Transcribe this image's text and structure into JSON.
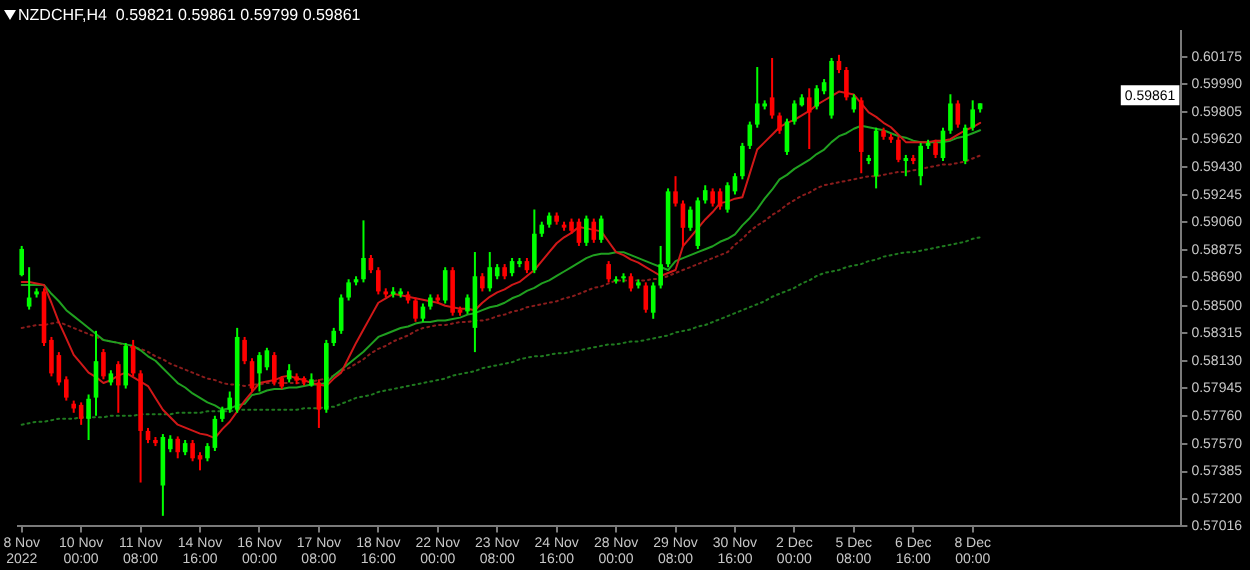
{
  "chart_data": {
    "type": "candlestick",
    "title": "NZDCHF,H4  0.59821 0.59861 0.59799 0.59861",
    "categories": [
      "8 Nov 2022",
      null,
      null,
      null,
      null,
      null,
      null,
      null,
      "10 Nov 00:00",
      null,
      null,
      null,
      null,
      null,
      null,
      null,
      "11 Nov 08:00",
      null,
      null,
      null,
      null,
      null,
      null,
      null,
      "14 Nov 16:00",
      null,
      null,
      null,
      null,
      null,
      null,
      null,
      "16 Nov 00:00",
      null,
      null,
      null,
      null,
      null,
      null,
      null,
      "17 Nov 08:00",
      null,
      null,
      null,
      null,
      null,
      null,
      null,
      "18 Nov 16:00",
      null,
      null,
      null,
      null,
      null,
      null,
      null,
      "22 Nov 00:00",
      null,
      null,
      null,
      null,
      null,
      null,
      null,
      "23 Nov 08:00",
      null,
      null,
      null,
      null,
      null,
      null,
      null,
      "24 Nov 16:00",
      null,
      null,
      null,
      null,
      null,
      null,
      null,
      "28 Nov 00:00",
      null,
      null,
      null,
      null,
      null,
      null,
      null,
      "29 Nov 08:00",
      null,
      null,
      null,
      null,
      null,
      null,
      null,
      "30 Nov 16:00",
      null,
      null,
      null,
      null,
      null,
      null,
      null,
      "2 Dec 00:00",
      null,
      null,
      null,
      null,
      null,
      null,
      null,
      "5 Dec 08:00",
      null,
      null,
      null,
      null,
      null,
      null,
      null,
      "6 Dec 16:00",
      null,
      null,
      null,
      null,
      null,
      null,
      null,
      "8 Dec 00:00",
      null
    ],
    "ohlc": [
      [
        0.58706,
        0.58902,
        0.58698,
        0.58882
      ],
      [
        0.58494,
        0.58759,
        0.58474,
        0.58555
      ],
      [
        0.58576,
        0.58617,
        0.58555,
        0.58596
      ],
      [
        0.58596,
        0.58617,
        0.58229,
        0.58249
      ],
      [
        0.5827,
        0.5829,
        0.58025,
        0.58045
      ],
      [
        0.58168,
        0.58188,
        0.57964,
        0.57984
      ],
      [
        0.58005,
        0.58025,
        0.57862,
        0.57882
      ],
      [
        0.57841,
        0.57862,
        0.5778,
        0.57809
      ],
      [
        0.57833,
        0.5785,
        0.57699,
        0.57739
      ],
      [
        0.57739,
        0.57903,
        0.57597,
        0.57874
      ],
      [
        0.57882,
        0.58331,
        0.5776,
        0.58127
      ],
      [
        0.58188,
        0.58209,
        0.58005,
        0.58025
      ],
      [
        0.57984,
        0.58066,
        0.57964,
        0.58045
      ],
      [
        0.58107,
        0.58127,
        0.5778,
        0.57964
      ],
      [
        0.57964,
        0.58249,
        0.57943,
        0.58229
      ],
      [
        0.58229,
        0.5827,
        0.58025,
        0.58045
      ],
      [
        0.58045,
        0.58066,
        0.57311,
        0.57658
      ],
      [
        0.57658,
        0.57678,
        0.57576,
        0.57597
      ],
      [
        0.57597,
        0.57617,
        0.57556,
        0.57576
      ],
      [
        0.57291,
        0.57637,
        0.57087,
        0.57617
      ],
      [
        0.57535,
        0.57629,
        0.57515,
        0.57605
      ],
      [
        0.57605,
        0.57621,
        0.57474,
        0.57515
      ],
      [
        0.57515,
        0.57597,
        0.57495,
        0.57576
      ],
      [
        0.57576,
        0.57597,
        0.57454,
        0.57474
      ],
      [
        0.57495,
        0.57515,
        0.57393,
        0.57466
      ],
      [
        0.57474,
        0.57576,
        0.57454,
        0.57556
      ],
      [
        0.57544,
        0.5776,
        0.57523,
        0.57739
      ],
      [
        0.57739,
        0.57821,
        0.57719,
        0.57801
      ],
      [
        0.57801,
        0.57923,
        0.5778,
        0.57882
      ],
      [
        0.57801,
        0.58351,
        0.5778,
        0.5829
      ],
      [
        0.5827,
        0.5829,
        0.58107,
        0.58127
      ],
      [
        0.58127,
        0.58147,
        0.57923,
        0.57943
      ],
      [
        0.58045,
        0.58188,
        0.57923,
        0.58168
      ],
      [
        0.58086,
        0.58217,
        0.58066,
        0.582
      ],
      [
        0.58168,
        0.58188,
        0.57964,
        0.57984
      ],
      [
        0.58013,
        0.58025,
        0.57939,
        0.57956
      ],
      [
        0.58005,
        0.58107,
        0.57984,
        0.58066
      ],
      [
        0.58025,
        0.58045,
        0.57972,
        0.57996
      ],
      [
        0.58013,
        0.58025,
        0.57964,
        0.57984
      ],
      [
        0.57964,
        0.58045,
        0.57956,
        0.58005
      ],
      [
        0.57984,
        0.58005,
        0.57678,
        0.57801
      ],
      [
        0.57801,
        0.5827,
        0.5778,
        0.58249
      ],
      [
        0.58249,
        0.58351,
        0.58229,
        0.58331
      ],
      [
        0.58331,
        0.58576,
        0.58311,
        0.58555
      ],
      [
        0.58555,
        0.58678,
        0.58535,
        0.58657
      ],
      [
        0.58657,
        0.58698,
        0.58637,
        0.58678
      ],
      [
        0.58678,
        0.59074,
        0.58657,
        0.58821
      ],
      [
        0.58821,
        0.58841,
        0.58719,
        0.58739
      ],
      [
        0.58739,
        0.58759,
        0.58576,
        0.58596
      ],
      [
        0.58596,
        0.58617,
        0.58555,
        0.58576
      ],
      [
        0.58576,
        0.58625,
        0.58555,
        0.58596
      ],
      [
        0.58576,
        0.58617,
        0.58555,
        0.58596
      ],
      [
        0.58576,
        0.58596,
        0.58515,
        0.58535
      ],
      [
        0.58535,
        0.58555,
        0.58392,
        0.58413
      ],
      [
        0.58413,
        0.58515,
        0.58392,
        0.58494
      ],
      [
        0.58494,
        0.58576,
        0.58474,
        0.58555
      ],
      [
        0.58555,
        0.58576,
        0.58515,
        0.58535
      ],
      [
        0.58535,
        0.58759,
        0.58515,
        0.58739
      ],
      [
        0.58739,
        0.58759,
        0.58433,
        0.58453
      ],
      [
        0.58474,
        0.58494,
        0.58433,
        0.58453
      ],
      [
        0.58462,
        0.58576,
        0.58445,
        0.58555
      ],
      [
        0.58351,
        0.58861,
        0.58188,
        0.58698
      ],
      [
        0.58698,
        0.58719,
        0.58596,
        0.58617
      ],
      [
        0.58617,
        0.58861,
        0.58596,
        0.58759
      ],
      [
        0.58698,
        0.5878,
        0.58678,
        0.58759
      ],
      [
        0.58759,
        0.5878,
        0.58678,
        0.58698
      ],
      [
        0.58719,
        0.58821,
        0.58698,
        0.588
      ],
      [
        0.5878,
        0.58821,
        0.58759,
        0.588
      ],
      [
        0.588,
        0.58821,
        0.58719,
        0.58739
      ],
      [
        0.58739,
        0.59147,
        0.58719,
        0.58984
      ],
      [
        0.58984,
        0.59065,
        0.58963,
        0.59045
      ],
      [
        0.59045,
        0.59127,
        0.59025,
        0.59106
      ],
      [
        0.59106,
        0.59127,
        0.59045,
        0.59065
      ],
      [
        0.59045,
        0.59065,
        0.59004,
        0.59025
      ],
      [
        0.59065,
        0.59086,
        0.58984,
        0.59004
      ],
      [
        0.59065,
        0.59086,
        0.58902,
        0.58923
      ],
      [
        0.58923,
        0.59106,
        0.58902,
        0.59086
      ],
      [
        0.59065,
        0.59086,
        0.58923,
        0.58943
      ],
      [
        0.58943,
        0.59106,
        0.58923,
        0.59086
      ],
      [
        0.5878,
        0.588,
        0.58657,
        0.58678
      ],
      [
        0.58666,
        0.58698,
        0.58649,
        0.58678
      ],
      [
        0.58689,
        0.58718,
        0.58657,
        0.58698
      ],
      [
        0.58698,
        0.58718,
        0.58596,
        0.58616
      ],
      [
        0.58636,
        0.58677,
        0.58616,
        0.58657
      ],
      [
        0.58636,
        0.58657,
        0.58453,
        0.58473
      ],
      [
        0.58453,
        0.58657,
        0.58412,
        0.58636
      ],
      [
        0.58636,
        0.58902,
        0.58616,
        0.58779
      ],
      [
        0.58779,
        0.59289,
        0.58759,
        0.59269
      ],
      [
        0.59269,
        0.59371,
        0.59167,
        0.59187
      ],
      [
        0.59187,
        0.59208,
        0.58902,
        0.59024
      ],
      [
        0.59024,
        0.59167,
        0.59004,
        0.59146
      ],
      [
        0.58902,
        0.59228,
        0.58881,
        0.59208
      ],
      [
        0.59208,
        0.5931,
        0.59187,
        0.59277
      ],
      [
        0.59269,
        0.59289,
        0.59167,
        0.59187
      ],
      [
        0.59269,
        0.59289,
        0.59146,
        0.59167
      ],
      [
        0.59146,
        0.5933,
        0.59126,
        0.5931
      ],
      [
        0.59269,
        0.59391,
        0.59248,
        0.59371
      ],
      [
        0.59371,
        0.59595,
        0.5935,
        0.59575
      ],
      [
        0.59575,
        0.59738,
        0.59554,
        0.59718
      ],
      [
        0.59718,
        0.60105,
        0.59697,
        0.5986
      ],
      [
        0.5984,
        0.59881,
        0.5982,
        0.5986
      ],
      [
        0.59901,
        0.60166,
        0.59758,
        0.59779
      ],
      [
        0.59779,
        0.59799,
        0.59656,
        0.59677
      ],
      [
        0.59534,
        0.59758,
        0.59514,
        0.59738
      ],
      [
        0.59738,
        0.59881,
        0.59718,
        0.5986
      ],
      [
        0.59848,
        0.59922,
        0.5984,
        0.59901
      ],
      [
        0.59901,
        0.59962,
        0.59554,
        0.59799
      ],
      [
        0.5984,
        0.59983,
        0.5982,
        0.59962
      ],
      [
        0.59942,
        0.60024,
        0.59922,
        0.60003
      ],
      [
        0.59779,
        0.60166,
        0.59758,
        0.60146
      ],
      [
        0.60146,
        0.60187,
        0.60064,
        0.60085
      ],
      [
        0.60085,
        0.60105,
        0.59881,
        0.59901
      ],
      [
        0.5982,
        0.59922,
        0.59799,
        0.59901
      ],
      [
        0.59881,
        0.59901,
        0.59391,
        0.59534
      ],
      [
        0.59473,
        0.59514,
        0.59452,
        0.59493
      ],
      [
        0.59371,
        0.59697,
        0.59289,
        0.59677
      ],
      [
        0.59677,
        0.59697,
        0.59616,
        0.59636
      ],
      [
        0.59636,
        0.59656,
        0.59595,
        0.59616
      ],
      [
        0.59616,
        0.59636,
        0.59465,
        0.59481
      ],
      [
        0.59473,
        0.59514,
        0.59371,
        0.59493
      ],
      [
        0.59493,
        0.59514,
        0.59452,
        0.59473
      ],
      [
        0.59371,
        0.59595,
        0.5931,
        0.59575
      ],
      [
        0.59575,
        0.59616,
        0.59554,
        0.59595
      ],
      [
        0.59595,
        0.59616,
        0.59493,
        0.59514
      ],
      [
        0.59493,
        0.59697,
        0.59473,
        0.59677
      ],
      [
        0.59677,
        0.59922,
        0.59656,
        0.5986
      ],
      [
        0.5986,
        0.59881,
        0.59697,
        0.59718
      ],
      [
        0.59473,
        0.59718,
        0.59452,
        0.59697
      ],
      [
        0.59697,
        0.59881,
        0.59677,
        0.5982
      ],
      [
        0.59821,
        0.59861,
        0.59799,
        0.59861
      ]
    ],
    "colors": [
      "#00ff00",
      "#00ff00",
      "#00ff00",
      "#ff0000",
      "#ff0000",
      "#ff0000",
      "#ff0000",
      "#ff0000",
      "#ff0000",
      "#00ff00",
      "#00ff00",
      "#ff0000",
      "#00ff00",
      "#ff0000",
      "#00ff00",
      "#ff0000",
      "#ff0000",
      "#ff0000",
      "#ff0000",
      "#00ff00",
      "#00ff00",
      "#ff0000",
      "#00ff00",
      "#ff0000",
      "#ff0000",
      "#00ff00",
      "#00ff00",
      "#00ff00",
      "#00ff00",
      "#00ff00",
      "#ff0000",
      "#ff0000",
      "#00ff00",
      "#00ff00",
      "#ff0000",
      "#ff0000",
      "#00ff00",
      "#ff0000",
      "#ff0000",
      "#00ff00",
      "#ff0000",
      "#00ff00",
      "#00ff00",
      "#00ff00",
      "#00ff00",
      "#00ff00",
      "#00ff00",
      "#ff0000",
      "#ff0000",
      "#ff0000",
      "#00ff00",
      "#00ff00",
      "#ff0000",
      "#ff0000",
      "#00ff00",
      "#00ff00",
      "#ff0000",
      "#00ff00",
      "#ff0000",
      "#ff0000",
      "#00ff00",
      "#00ff00",
      "#ff0000",
      "#00ff00",
      "#00ff00",
      "#ff0000",
      "#00ff00",
      "#00ff00",
      "#ff0000",
      "#00ff00",
      "#00ff00",
      "#00ff00",
      "#ff0000",
      "#ff0000",
      "#ff0000",
      "#ff0000",
      "#00ff00",
      "#ff0000",
      "#00ff00",
      "#ff0000",
      "#00ff00",
      "#00ff00",
      "#ff0000",
      "#00ff00",
      "#ff0000",
      "#00ff00",
      "#00ff00",
      "#00ff00",
      "#ff0000",
      "#ff0000",
      "#00ff00",
      "#00ff00",
      "#00ff00",
      "#ff0000",
      "#ff0000",
      "#00ff00",
      "#00ff00",
      "#00ff00",
      "#00ff00",
      "#00ff00",
      "#00ff00",
      "#ff0000",
      "#ff0000",
      "#00ff00",
      "#00ff00",
      "#00ff00",
      "#ff0000",
      "#00ff00",
      "#00ff00",
      "#00ff00",
      "#ff0000",
      "#ff0000",
      "#00ff00",
      "#ff0000",
      "#00ff00",
      "#00ff00",
      "#ff0000",
      "#ff0000",
      "#ff0000",
      "#00ff00",
      "#ff0000",
      "#00ff00",
      "#00ff00",
      "#ff0000",
      "#00ff00",
      "#00ff00",
      "#ff0000",
      "#00ff00",
      "#00ff00",
      "#00ff00"
    ],
    "series": [
      {
        "type": "line",
        "color": "#d01818",
        "line_style": "solid",
        "values": [
          0.5866,
          0.5866,
          0.5865,
          0.5864,
          0.5852,
          0.5839,
          0.5828,
          0.5817,
          0.5811,
          0.5805,
          0.5802,
          0.5798,
          0.58,
          0.5803,
          0.5805,
          0.5802,
          0.5799,
          0.5796,
          0.5788,
          0.578,
          0.5775,
          0.577,
          0.5768,
          0.5766,
          0.5764,
          0.5763,
          0.5761,
          0.5767,
          0.5772,
          0.5779,
          0.5786,
          0.5792,
          0.5798,
          0.5799,
          0.58,
          0.5802,
          0.5803,
          0.5801,
          0.58,
          0.5798,
          0.5797,
          0.5796,
          0.5801,
          0.5805,
          0.5815,
          0.5825,
          0.5834,
          0.5843,
          0.5852,
          0.5855,
          0.5858,
          0.5857,
          0.5856,
          0.5855,
          0.5854,
          0.5853,
          0.5852,
          0.585,
          0.5849,
          0.5848,
          0.5848,
          0.5847,
          0.5852,
          0.5856,
          0.5859,
          0.5861,
          0.5864,
          0.5866,
          0.587,
          0.5874,
          0.588,
          0.5886,
          0.5892,
          0.5896,
          0.5899,
          0.5903,
          0.5902,
          0.5901,
          0.59,
          0.5893,
          0.5886,
          0.5884,
          0.5881,
          0.5879,
          0.5876,
          0.5873,
          0.587,
          0.5872,
          0.5874,
          0.589,
          0.5896,
          0.5902,
          0.5908,
          0.5913,
          0.5919,
          0.592,
          0.5922,
          0.5923,
          0.5939,
          0.5955,
          0.596,
          0.5965,
          0.597,
          0.5973,
          0.5975,
          0.5978,
          0.5981,
          0.5985,
          0.5988,
          0.5991,
          0.5994,
          0.5993,
          0.5992,
          0.5986,
          0.598,
          0.5977,
          0.5973,
          0.597,
          0.5965,
          0.596,
          0.596,
          0.596,
          0.596,
          0.5961,
          0.5961,
          0.5962,
          0.5965,
          0.5968,
          0.597,
          0.5973
        ]
      },
      {
        "type": "line",
        "color": "#20a020",
        "line_style": "solid",
        "values": [
          0.5864,
          0.5864,
          0.5864,
          0.5864,
          0.5858,
          0.5853,
          0.5847,
          0.5843,
          0.5839,
          0.5835,
          0.5831,
          0.5827,
          0.5826,
          0.5825,
          0.5824,
          0.5823,
          0.582,
          0.5816,
          0.5813,
          0.5808,
          0.5803,
          0.5798,
          0.5795,
          0.5791,
          0.5788,
          0.5785,
          0.5783,
          0.578,
          0.5781,
          0.5783,
          0.5784,
          0.579,
          0.5791,
          0.5793,
          0.5794,
          0.5794,
          0.5795,
          0.5795,
          0.5796,
          0.5797,
          0.5797,
          0.5798,
          0.5803,
          0.5807,
          0.5811,
          0.5815,
          0.5819,
          0.5824,
          0.5829,
          0.5831,
          0.5833,
          0.5835,
          0.5836,
          0.5838,
          0.5839,
          0.5839,
          0.584,
          0.584,
          0.5841,
          0.5842,
          0.5844,
          0.5845,
          0.5847,
          0.5849,
          0.585,
          0.5852,
          0.5855,
          0.5857,
          0.586,
          0.5862,
          0.5865,
          0.5867,
          0.587,
          0.5873,
          0.5876,
          0.5879,
          0.5882,
          0.5884,
          0.5885,
          0.5885,
          0.5886,
          0.5886,
          0.5884,
          0.5882,
          0.588,
          0.5878,
          0.5876,
          0.5874,
          0.588,
          0.5882,
          0.5884,
          0.5886,
          0.5888,
          0.589,
          0.5893,
          0.5895,
          0.5898,
          0.5904,
          0.5909,
          0.5915,
          0.5922,
          0.5928,
          0.5935,
          0.5938,
          0.5942,
          0.5945,
          0.5948,
          0.5952,
          0.5955,
          0.596,
          0.5964,
          0.5966,
          0.5969,
          0.5971,
          0.597,
          0.5969,
          0.5968,
          0.5966,
          0.5964,
          0.5963,
          0.5961,
          0.596,
          0.596,
          0.596,
          0.596,
          0.5961,
          0.5963,
          0.5964,
          0.5966,
          0.5968
        ]
      },
      {
        "type": "line",
        "color": "#8b1c1c",
        "line_style": "dotted",
        "values": [
          0.5835,
          0.5836,
          0.5837,
          0.5837,
          0.5838,
          0.5839,
          0.5837,
          0.5835,
          0.5833,
          0.5831,
          0.5829,
          0.5827,
          0.5826,
          0.5825,
          0.5823,
          0.5822,
          0.5821,
          0.5819,
          0.5816,
          0.5814,
          0.5811,
          0.5809,
          0.5807,
          0.5805,
          0.5803,
          0.5801,
          0.58,
          0.5798,
          0.5797,
          0.5797,
          0.5796,
          0.5797,
          0.5797,
          0.5798,
          0.5798,
          0.5798,
          0.5798,
          0.5798,
          0.5798,
          0.5799,
          0.58,
          0.5801,
          0.5803,
          0.5806,
          0.5808,
          0.5811,
          0.5814,
          0.5818,
          0.5821,
          0.5823,
          0.5826,
          0.5828,
          0.583,
          0.5833,
          0.5835,
          0.5836,
          0.5837,
          0.5837,
          0.5838,
          0.5839,
          0.5839,
          0.584,
          0.584,
          0.5841,
          0.5843,
          0.5844,
          0.5846,
          0.5847,
          0.5849,
          0.585,
          0.5851,
          0.5852,
          0.5853,
          0.5855,
          0.5856,
          0.5858,
          0.586,
          0.5862,
          0.5863,
          0.5865,
          0.5867,
          0.5867,
          0.5867,
          0.5867,
          0.5867,
          0.5868,
          0.5868,
          0.587,
          0.5872,
          0.5874,
          0.5876,
          0.5878,
          0.588,
          0.5882,
          0.5884,
          0.5886,
          0.5891,
          0.5895,
          0.59,
          0.5904,
          0.5907,
          0.5911,
          0.5914,
          0.5918,
          0.5921,
          0.5924,
          0.5926,
          0.5929,
          0.5931,
          0.5932,
          0.5933,
          0.5934,
          0.5935,
          0.5936,
          0.5937,
          0.5937,
          0.5938,
          0.5939,
          0.594,
          0.594,
          0.5941,
          0.5942,
          0.5943,
          0.5944,
          0.5945,
          0.5945,
          0.5946,
          0.5947,
          0.5949,
          0.5951
        ]
      },
      {
        "type": "line",
        "color": "#1f7a1f",
        "line_style": "dotted",
        "values": [
          0.577,
          0.5771,
          0.5772,
          0.5772,
          0.5773,
          0.5774,
          0.5774,
          0.5774,
          0.5775,
          0.5775,
          0.5775,
          0.5775,
          0.5776,
          0.5776,
          0.5776,
          0.5776,
          0.5777,
          0.5777,
          0.5777,
          0.5777,
          0.5777,
          0.5778,
          0.5778,
          0.5778,
          0.5778,
          0.5779,
          0.5779,
          0.5779,
          0.5779,
          0.578,
          0.578,
          0.578,
          0.578,
          0.578,
          0.578,
          0.578,
          0.578,
          0.578,
          0.5781,
          0.5781,
          0.5781,
          0.5782,
          0.5782,
          0.5784,
          0.5786,
          0.5788,
          0.5789,
          0.579,
          0.5792,
          0.5793,
          0.5794,
          0.5795,
          0.5796,
          0.5797,
          0.5798,
          0.5799,
          0.58,
          0.5801,
          0.5803,
          0.5804,
          0.5805,
          0.5806,
          0.5808,
          0.5809,
          0.581,
          0.5811,
          0.5812,
          0.5814,
          0.5815,
          0.5816,
          0.5816,
          0.5817,
          0.5818,
          0.5818,
          0.5819,
          0.582,
          0.5821,
          0.5822,
          0.5823,
          0.5824,
          0.5824,
          0.5825,
          0.5826,
          0.5826,
          0.5827,
          0.5828,
          0.5829,
          0.583,
          0.5832,
          0.5833,
          0.5834,
          0.5836,
          0.5837,
          0.5839,
          0.5841,
          0.5843,
          0.5845,
          0.5847,
          0.5849,
          0.5851,
          0.5853,
          0.5856,
          0.5858,
          0.586,
          0.5862,
          0.5865,
          0.5867,
          0.587,
          0.5872,
          0.5873,
          0.5874,
          0.5876,
          0.5877,
          0.5878,
          0.588,
          0.5881,
          0.5883,
          0.5884,
          0.5885,
          0.5886,
          0.5886,
          0.5887,
          0.5888,
          0.5889,
          0.589,
          0.5891,
          0.5892,
          0.5893,
          0.5895,
          0.5896
        ]
      }
    ],
    "ylim": [
      0.57016,
      0.60346
    ],
    "yticks": [
      0.60175,
      {
        "value": 0.5999,
        "label": "0.59990"
      },
      0.59805,
      {
        "value": 0.5962,
        "label": "0.59620"
      },
      {
        "value": 0.5943,
        "label": "0.59430"
      },
      0.59245,
      {
        "value": 0.5906,
        "label": "0.59060"
      },
      0.58875,
      {
        "value": 0.5869,
        "label": "0.58690"
      },
      {
        "value": 0.585,
        "label": "0.58500"
      },
      0.58315,
      {
        "value": 0.5813,
        "label": "0.58130"
      },
      0.57945,
      {
        "value": 0.5776,
        "label": "0.57760"
      },
      {
        "value": 0.5757,
        "label": "0.57570"
      },
      0.57385,
      {
        "value": 0.572,
        "label": "0.57200"
      },
      0.57016
    ],
    "annotations": [
      "0.59861"
    ],
    "grid": false,
    "legend": false
  }
}
